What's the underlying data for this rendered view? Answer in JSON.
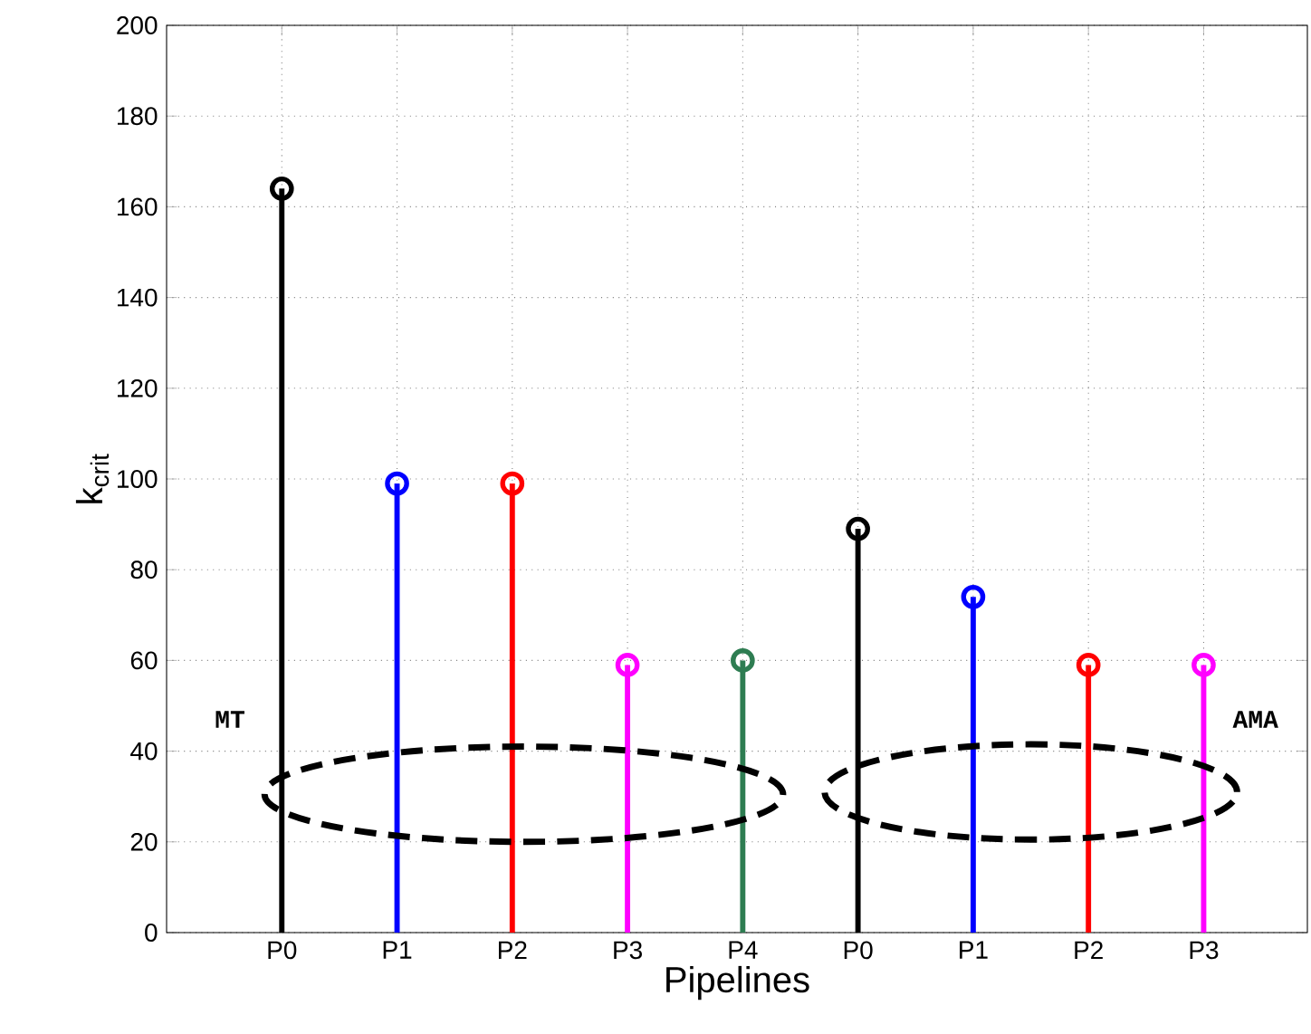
{
  "chart_data": {
    "type": "lollipop",
    "xlabel": "Pipelines",
    "ylabel": "k$_{crit}$",
    "categories": [
      "P0",
      "P1",
      "P2",
      "P3",
      "P4",
      "P0",
      "P1",
      "P2",
      "P3"
    ],
    "values": [
      164,
      99,
      99,
      59,
      60,
      89,
      74,
      59,
      59
    ],
    "colors": [
      "#000000",
      "#0000ff",
      "#ff0000",
      "#ff00ff",
      "#2e7d52",
      "#000000",
      "#0000ff",
      "#ff0000",
      "#ff00ff"
    ],
    "ylim": [
      0,
      200
    ],
    "yticks": [
      0,
      20,
      40,
      60,
      80,
      100,
      120,
      140,
      160,
      180,
      200
    ],
    "grid": true,
    "marker": "circle",
    "annotations": [
      "MT",
      "AMA"
    ]
  }
}
